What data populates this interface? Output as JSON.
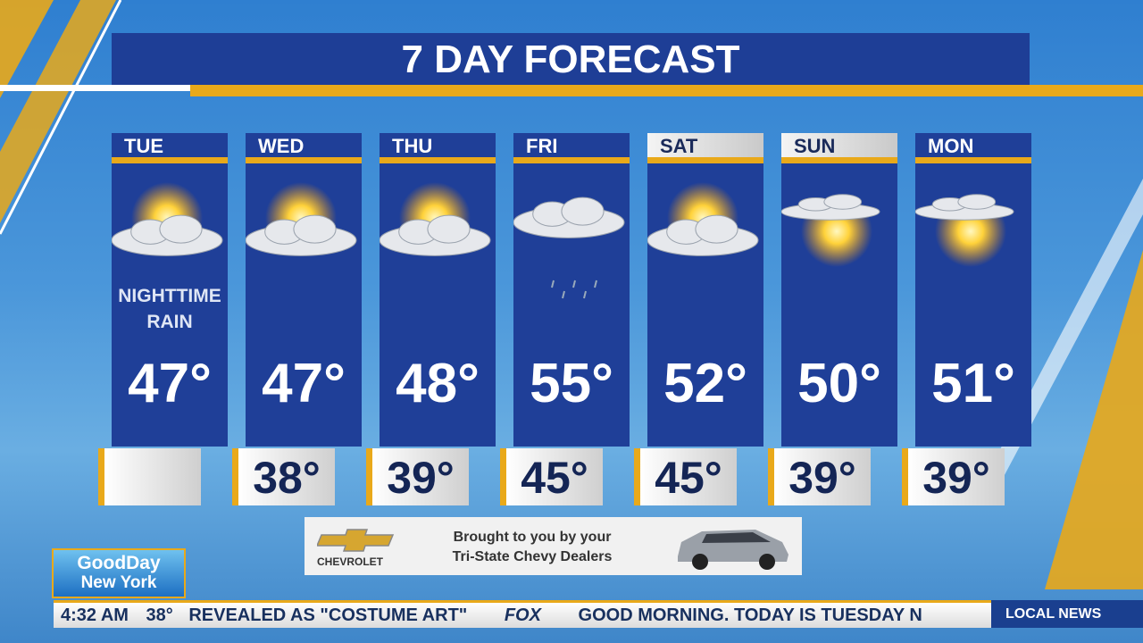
{
  "header": {
    "title": "7 DAY FORECAST"
  },
  "days": [
    {
      "name": "TUE",
      "note": "NIGHTTIME RAIN",
      "high": "47°"
    },
    {
      "name": "WED",
      "high": "47°",
      "low": "38°"
    },
    {
      "name": "THU",
      "high": "48°",
      "low": "39°"
    },
    {
      "name": "FRI",
      "high": "55°",
      "low": "45°"
    },
    {
      "name": "SAT",
      "high": "52°",
      "low": "45°"
    },
    {
      "name": "SUN",
      "high": "50°",
      "low": "39°"
    },
    {
      "name": "MON",
      "high": "51°",
      "low": "39°"
    }
  ],
  "sponsor": {
    "brand": "CHEVROLET",
    "line1": "Brought to you by your",
    "line2": "Tri-State Chevy Dealers"
  },
  "logo": {
    "line1": "GoodDay",
    "line2": "New York"
  },
  "ticker": {
    "time": "4:32 AM",
    "temp": "38°",
    "headline": "REVEALED AS \"COSTUME ART\"",
    "network": "FOX",
    "crawl": "GOOD MORNING.  TODAY IS TUESDAY N",
    "tag": "LOCAL NEWS"
  }
}
